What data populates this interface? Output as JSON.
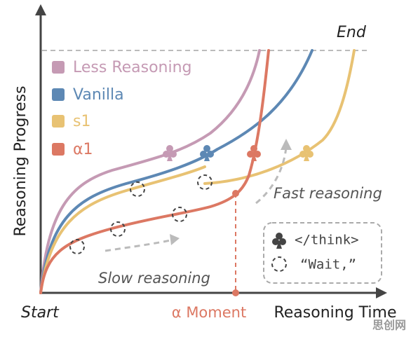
{
  "axes": {
    "y_label": "Reasoning Progress",
    "x_label": "Reasoning Time",
    "start": "Start",
    "end": "End"
  },
  "legend": [
    {
      "label": "Less Reasoning",
      "color": "#c59ab4"
    },
    {
      "label": "Vanilla",
      "color": "#5d88b4"
    },
    {
      "label": "s1",
      "color": "#e8c273"
    },
    {
      "label": "α1",
      "color": "#dc7863"
    }
  ],
  "annotations": {
    "fast": "Fast reasoning",
    "slow": "Slow reasoning",
    "moment": "α Moment"
  },
  "key": {
    "think": "</think>",
    "wait": "“Wait,”"
  },
  "watermark": "思创网"
}
